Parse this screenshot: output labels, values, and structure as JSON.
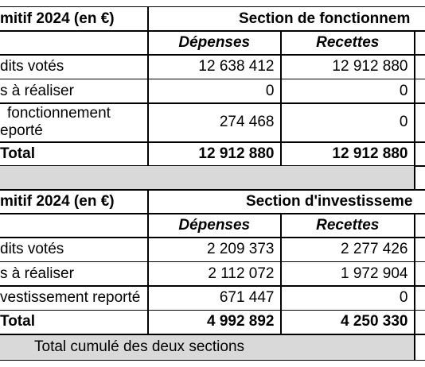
{
  "tables": [
    {
      "header": {
        "label": "mitif 2024 (en €)",
        "section": "Section de fonctionnem"
      },
      "columns": [
        "Dépenses",
        "Recettes"
      ],
      "rows": [
        {
          "label": [
            "dits votés"
          ],
          "values": [
            "12 638 412",
            "12 912 880"
          ]
        },
        {
          "label": [
            "s à réaliser"
          ],
          "values": [
            "0",
            "0"
          ]
        },
        {
          "label": [
            "fonctionnement",
            "eporté"
          ],
          "values": [
            "274 468",
            "0"
          ]
        }
      ],
      "total": {
        "label": "Total",
        "values": [
          "12 912 880",
          "12 912 880"
        ]
      }
    },
    {
      "header": {
        "label": "mitif 2024 (en €)",
        "section": "Section d'investisseme"
      },
      "columns": [
        "Dépenses",
        "Recettes"
      ],
      "rows": [
        {
          "label": [
            "dits votés"
          ],
          "values": [
            "2 209 373",
            "2 277 426"
          ]
        },
        {
          "label": [
            "s à réaliser"
          ],
          "values": [
            "2 112 072",
            "1 972 904"
          ]
        },
        {
          "label": [
            "vestissement reporté"
          ],
          "values": [
            "671 447",
            "0"
          ]
        }
      ],
      "total": {
        "label": "Total",
        "values": [
          "4 992 892",
          "4 250 330"
        ]
      }
    }
  ],
  "footer": "Total cumulé des deux sections"
}
